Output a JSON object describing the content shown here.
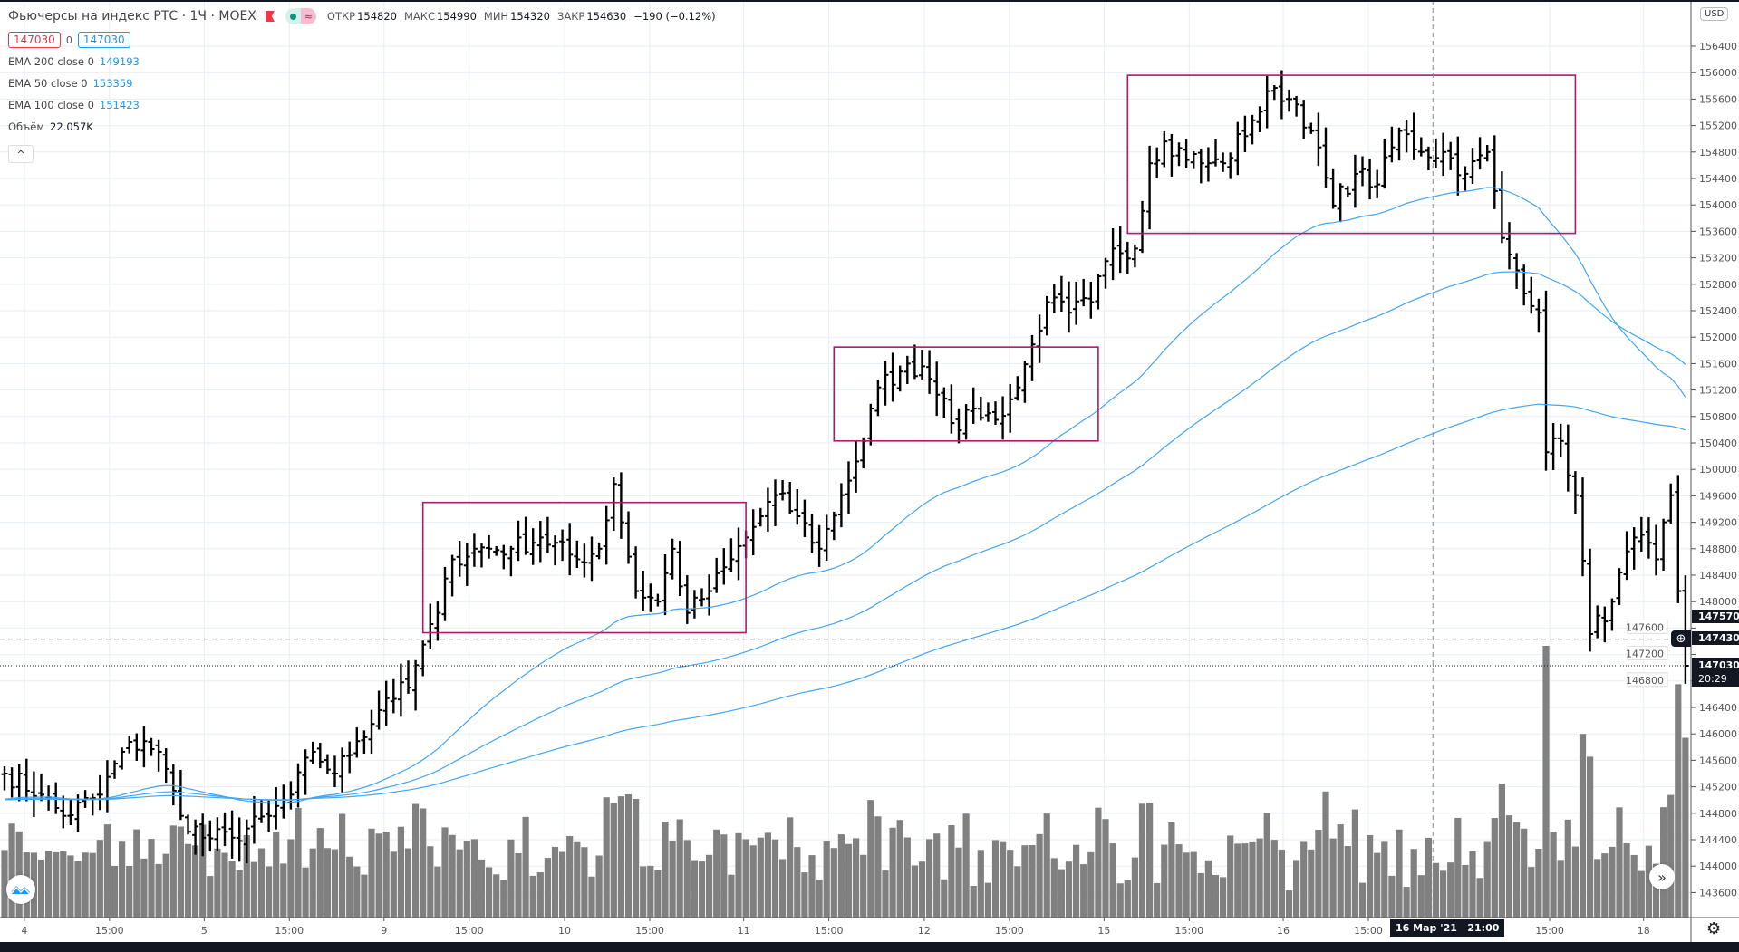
{
  "header": {
    "title": "Фьючерсы на индекс РТС · 1Ч · MOEX",
    "ohlc": [
      {
        "label": "ОТКР",
        "value": "154820"
      },
      {
        "label": "МАКС",
        "value": "154990"
      },
      {
        "label": "МИН",
        "value": "154320"
      },
      {
        "label": "ЗАКР",
        "value": "154630"
      }
    ],
    "change": "−190 (−0.12%)",
    "sell_price": "147030",
    "spread": "0",
    "buy_price": "147030",
    "indicators": [
      {
        "label": "EMA 200 close 0",
        "value": "149193"
      },
      {
        "label": "EMA 50 close 0",
        "value": "153359"
      },
      {
        "label": "EMA 100 close 0",
        "value": "151423"
      }
    ],
    "volume_label": "Объём",
    "volume_value": "22.057K",
    "collapse_icon": "^"
  },
  "currency": "USD",
  "price_labels": {
    "hidden": "147570",
    "crosshair": "147430",
    "last": "147030",
    "countdown": "20:29"
  },
  "crosshair_time": "16 Мар '21   21:00",
  "colors": {
    "bar": "#000000",
    "ema": "#42a5f5",
    "volume": "#808080",
    "box": "#b0186a",
    "grid": "#e6eef5"
  },
  "chart_data": {
    "type": "ohlc",
    "title": "Фьючерсы на индекс РТС · 1Ч · MOEX",
    "ylim": [
      143400,
      157000
    ],
    "bar_count": 230,
    "y_ticks": [
      143600,
      144000,
      144400,
      144800,
      145200,
      145600,
      146000,
      146400,
      146800,
      147200,
      147600,
      148000,
      148400,
      148800,
      149200,
      149600,
      150000,
      150400,
      150800,
      151200,
      151600,
      152000,
      152400,
      152800,
      153200,
      153600,
      154000,
      154400,
      154800,
      155200,
      155600,
      156000,
      156400
    ],
    "x_ticks": [
      {
        "bar": 2.7,
        "label": "4"
      },
      {
        "bar": 14.3,
        "label": "15:00"
      },
      {
        "bar": 27.2,
        "label": "5"
      },
      {
        "bar": 38.8,
        "label": "15:00"
      },
      {
        "bar": 51.7,
        "label": "9"
      },
      {
        "bar": 63.3,
        "label": "15:00"
      },
      {
        "bar": 76.3,
        "label": "10"
      },
      {
        "bar": 87.9,
        "label": "15:00"
      },
      {
        "bar": 100.7,
        "label": "11"
      },
      {
        "bar": 112.3,
        "label": "15:00"
      },
      {
        "bar": 125.3,
        "label": "12"
      },
      {
        "bar": 136.9,
        "label": "15:00"
      },
      {
        "bar": 149.8,
        "label": "15"
      },
      {
        "bar": 161.4,
        "label": "15:00"
      },
      {
        "bar": 174.2,
        "label": "16"
      },
      {
        "bar": 185.8,
        "label": "15:00"
      },
      {
        "bar": 210.5,
        "label": "15:00"
      },
      {
        "bar": 223.3,
        "label": "18"
      }
    ],
    "close_anchors": [
      [
        0,
        145400
      ],
      [
        5,
        145080
      ],
      [
        8,
        144760
      ],
      [
        13,
        145080
      ],
      [
        16,
        145730
      ],
      [
        19,
        145890
      ],
      [
        21,
        145730
      ],
      [
        24,
        144760
      ],
      [
        27,
        144430
      ],
      [
        31,
        144430
      ],
      [
        36,
        144760
      ],
      [
        39,
        145080
      ],
      [
        42,
        145730
      ],
      [
        45,
        145400
      ],
      [
        48,
        145890
      ],
      [
        52,
        146540
      ],
      [
        55,
        146700
      ],
      [
        57,
        147350
      ],
      [
        59,
        147830
      ],
      [
        61,
        148640
      ],
      [
        64,
        148800
      ],
      [
        69,
        148800
      ],
      [
        73,
        148970
      ],
      [
        78,
        148640
      ],
      [
        81,
        148800
      ],
      [
        83,
        149780
      ],
      [
        86,
        148160
      ],
      [
        89,
        148000
      ],
      [
        91,
        148800
      ],
      [
        93,
        147830
      ],
      [
        96,
        148160
      ],
      [
        99,
        148640
      ],
      [
        102,
        149130
      ],
      [
        105,
        149610
      ],
      [
        108,
        149290
      ],
      [
        111,
        148800
      ],
      [
        114,
        149610
      ],
      [
        117,
        150430
      ],
      [
        119,
        151240
      ],
      [
        122,
        151480
      ],
      [
        125,
        151560
      ],
      [
        128,
        151070
      ],
      [
        130,
        150590
      ],
      [
        132,
        150920
      ],
      [
        135,
        150750
      ],
      [
        138,
        151240
      ],
      [
        140,
        151890
      ],
      [
        142,
        152530
      ],
      [
        145,
        152370
      ],
      [
        148,
        152530
      ],
      [
        151,
        153340
      ],
      [
        154,
        153340
      ],
      [
        156,
        154630
      ],
      [
        158,
        154960
      ],
      [
        163,
        154630
      ],
      [
        166,
        154630
      ],
      [
        170,
        155280
      ],
      [
        173,
        155770
      ],
      [
        176,
        155520
      ],
      [
        178,
        155120
      ],
      [
        181,
        153990
      ],
      [
        184,
        154470
      ],
      [
        187,
        154310
      ],
      [
        190,
        155120
      ],
      [
        193,
        154800
      ],
      [
        196,
        154800
      ],
      [
        199,
        154470
      ],
      [
        202,
        154800
      ],
      [
        204,
        153500
      ],
      [
        206,
        153010
      ],
      [
        209,
        152370
      ],
      [
        210,
        150260
      ],
      [
        212,
        150430
      ],
      [
        214,
        149610
      ],
      [
        216,
        147510
      ],
      [
        219,
        148000
      ],
      [
        222,
        148970
      ],
      [
        225,
        148640
      ],
      [
        227,
        149610
      ],
      [
        228,
        148160
      ],
      [
        229,
        147030
      ]
    ],
    "ema_periods": [
      50,
      100,
      200
    ],
    "ema_start": 145000,
    "boxes": [
      {
        "bar_from": 57,
        "bar_to": 101,
        "price_top": 149500,
        "price_bottom": 147530
      },
      {
        "bar_from": 113,
        "bar_to": 149,
        "price_top": 151850,
        "price_bottom": 150430
      },
      {
        "bar_from": 153,
        "bar_to": 214,
        "price_top": 155960,
        "price_bottom": 153570
      }
    ],
    "crosshair": {
      "bar": 194.6,
      "price": 147430
    },
    "last_price": 147030
  }
}
